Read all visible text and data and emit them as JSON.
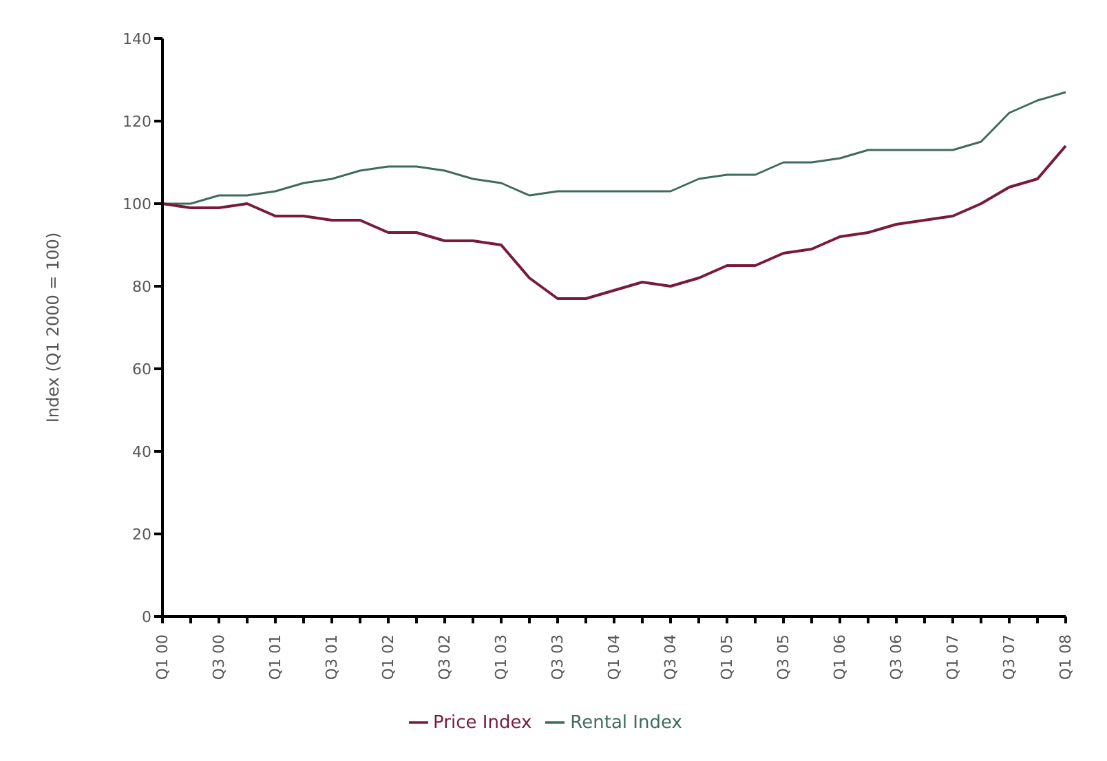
{
  "chart_data": {
    "type": "line",
    "ylabel": "Index (Q1 2000 = 100)",
    "categories": [
      "Q1 00",
      null,
      "Q3 00",
      null,
      "Q1 01",
      null,
      "Q3 01",
      null,
      "Q1 02",
      null,
      "Q3 02",
      null,
      "Q1 03",
      null,
      "Q3 03",
      null,
      "Q1 04",
      null,
      "Q3 04",
      null,
      "Q1 05",
      null,
      "Q3 05",
      null,
      "Q1 06",
      null,
      "Q3 06",
      null,
      "Q1 07",
      null,
      "Q3 07",
      null,
      "Q1 08"
    ],
    "series": [
      {
        "name": "Rental Index",
        "color": "#3f6b5a",
        "values": [
          100,
          100,
          102,
          102,
          103,
          105,
          106,
          108,
          109,
          109,
          108,
          106,
          105,
          102,
          103,
          103,
          103,
          103,
          103,
          106,
          107,
          107,
          110,
          110,
          111,
          113,
          113,
          113,
          113,
          115,
          122,
          125,
          127
        ]
      },
      {
        "name": "Price Index",
        "color": "#7a1a3a",
        "values": [
          100,
          99,
          99,
          100,
          97,
          97,
          96,
          96,
          93,
          93,
          91,
          91,
          90,
          82,
          77,
          77,
          79,
          81,
          80,
          82,
          85,
          85,
          88,
          89,
          92,
          93,
          95,
          96,
          97,
          100,
          104,
          106,
          114
        ]
      }
    ],
    "ylim": [
      0,
      140
    ],
    "yticks": [
      0,
      20,
      40,
      60,
      80,
      100,
      120,
      140
    ],
    "grid": false,
    "legend": "bottom",
    "marker": "none",
    "line_style": "solid"
  }
}
